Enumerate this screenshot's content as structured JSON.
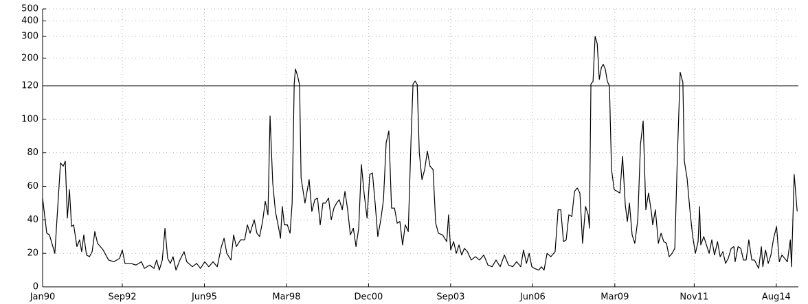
{
  "chart_data": {
    "type": "line",
    "x": [
      1990.0,
      1990.14,
      1990.23,
      1990.41,
      1990.6,
      1990.69,
      1990.76,
      1990.83,
      1990.9,
      1990.97,
      1991.04,
      1991.15,
      1991.24,
      1991.31,
      1991.38,
      1991.47,
      1991.57,
      1991.66,
      1991.75,
      1991.84,
      1992.03,
      1992.21,
      1992.39,
      1992.58,
      1992.67,
      1992.76,
      1992.95,
      1993.13,
      1993.31,
      1993.41,
      1993.59,
      1993.73,
      1993.82,
      1993.91,
      1994.01,
      1994.1,
      1994.19,
      1994.28,
      1994.37,
      1994.47,
      1994.6,
      1994.74,
      1994.83,
      1995.02,
      1995.16,
      1995.29,
      1995.43,
      1995.57,
      1995.71,
      1995.85,
      1995.99,
      1996.08,
      1996.17,
      1996.31,
      1996.4,
      1996.49,
      1996.63,
      1996.77,
      1996.86,
      1996.95,
      1997.09,
      1997.18,
      1997.27,
      1997.37,
      1997.46,
      1997.55,
      1997.62,
      1997.71,
      1997.8,
      1997.9,
      1997.97,
      1998.03,
      1998.1,
      1998.2,
      1998.29,
      1998.36,
      1998.43,
      1998.47,
      1998.54,
      1998.61,
      1998.66,
      1998.79,
      1998.93,
      1999.02,
      1999.12,
      1999.21,
      1999.3,
      1999.39,
      1999.48,
      1999.58,
      1999.67,
      1999.76,
      1999.85,
      1999.94,
      2000.04,
      2000.13,
      2000.22,
      2000.31,
      2000.41,
      2000.5,
      2000.59,
      2000.68,
      2000.77,
      2000.87,
      2000.96,
      2001.05,
      2001.14,
      2001.23,
      2001.33,
      2001.42,
      2001.51,
      2001.6,
      2001.69,
      2001.79,
      2001.88,
      2001.97,
      2002.06,
      2002.15,
      2002.25,
      2002.34,
      2002.41,
      2002.48,
      2002.55,
      2002.62,
      2002.71,
      2002.8,
      2002.89,
      2002.98,
      2003.08,
      2003.17,
      2003.26,
      2003.4,
      2003.54,
      2003.6,
      2003.67,
      2003.77,
      2003.86,
      2003.95,
      2004.04,
      2004.13,
      2004.23,
      2004.36,
      2004.5,
      2004.64,
      2004.78,
      2004.92,
      2005.06,
      2005.19,
      2005.33,
      2005.47,
      2005.61,
      2005.75,
      2005.88,
      2006.02,
      2006.11,
      2006.21,
      2006.3,
      2006.39,
      2006.48,
      2006.62,
      2006.71,
      2006.8,
      2006.9,
      2007.03,
      2007.17,
      2007.27,
      2007.36,
      2007.45,
      2007.54,
      2007.63,
      2007.73,
      2007.82,
      2007.91,
      2008.0,
      2008.09,
      2008.19,
      2008.28,
      2008.32,
      2008.37,
      2008.44,
      2008.51,
      2008.58,
      2008.65,
      2008.72,
      2008.78,
      2008.85,
      2008.92,
      2008.99,
      2009.06,
      2009.15,
      2009.25,
      2009.34,
      2009.43,
      2009.52,
      2009.59,
      2009.66,
      2009.75,
      2009.84,
      2009.94,
      2010.03,
      2010.12,
      2010.21,
      2010.3,
      2010.4,
      2010.44,
      2010.53,
      2010.63,
      2010.72,
      2010.81,
      2010.9,
      2010.99,
      2011.09,
      2011.18,
      2011.27,
      2011.36,
      2011.45,
      2011.5,
      2011.59,
      2011.69,
      2011.78,
      2011.87,
      2011.96,
      2012.01,
      2012.05,
      2012.15,
      2012.24,
      2012.33,
      2012.42,
      2012.51,
      2012.61,
      2012.7,
      2012.79,
      2012.88,
      2012.97,
      2013.07,
      2013.16,
      2013.2,
      2013.3,
      2013.39,
      2013.48,
      2013.57,
      2013.66,
      2013.76,
      2013.85,
      2013.99,
      2014.08,
      2014.13,
      2014.22,
      2014.31,
      2014.4,
      2014.49,
      2014.59,
      2014.68,
      2014.77,
      2014.86,
      2014.95,
      2015.05,
      2015.09,
      2015.18,
      2015.28
    ],
    "values": [
      53,
      32,
      31,
      20,
      74,
      72,
      75,
      41,
      58,
      36,
      37,
      24,
      28,
      21,
      31,
      19,
      18,
      21,
      33,
      26,
      22,
      16,
      15,
      17,
      22,
      14,
      14,
      13,
      15,
      11,
      13,
      11,
      16,
      10,
      16,
      35,
      17,
      14,
      18,
      10,
      16,
      21,
      15,
      12,
      14,
      11,
      15,
      12,
      15,
      12,
      24,
      29,
      20,
      16,
      31,
      24,
      28,
      28,
      37,
      32,
      40,
      32,
      30,
      39,
      51,
      43,
      102,
      62,
      45,
      36,
      29,
      48,
      37,
      37,
      32,
      50,
      125,
      164,
      145,
      122,
      65,
      50,
      64,
      45,
      52,
      53,
      37,
      50,
      50,
      53,
      40,
      47,
      50,
      52,
      46,
      57,
      46,
      31,
      35,
      24,
      35,
      73,
      56,
      41,
      67,
      68,
      50,
      30,
      40,
      52,
      86,
      93,
      47,
      47,
      38,
      39,
      25,
      37,
      33,
      86,
      124,
      131,
      123,
      80,
      64,
      70,
      81,
      72,
      70,
      38,
      32,
      31,
      27,
      43,
      22,
      27,
      20,
      25,
      19,
      23,
      21,
      16,
      18,
      16,
      19,
      13,
      12,
      16,
      12,
      19,
      13,
      12,
      15,
      12,
      22,
      14,
      20,
      12,
      11,
      10,
      12,
      10,
      20,
      18,
      21,
      46,
      46,
      27,
      28,
      43,
      42,
      57,
      59,
      56,
      26,
      48,
      43,
      35,
      124,
      130,
      300,
      263,
      135,
      168,
      179,
      164,
      130,
      120,
      70,
      58,
      57,
      56,
      78,
      49,
      39,
      50,
      31,
      26,
      40,
      85,
      99,
      46,
      56,
      44,
      37,
      46,
      26,
      32,
      27,
      26,
      18,
      20,
      23,
      80,
      154,
      128,
      75,
      65,
      45,
      30,
      20,
      27,
      48,
      25,
      30,
      25,
      20,
      28,
      19,
      27,
      18,
      21,
      14,
      17,
      23,
      24,
      15,
      24,
      23,
      16,
      16,
      28,
      16,
      16,
      11,
      24,
      12,
      22,
      14,
      19,
      29,
      36,
      15,
      19,
      17,
      15,
      28,
      12,
      67,
      45
    ],
    "color": "#000000",
    "xlim": [
      1990,
      2015.32
    ],
    "xticks": [
      {
        "value": 1990,
        "label": "Jan90"
      },
      {
        "value": 1992.67,
        "label": "Sep92"
      },
      {
        "value": 1995.42,
        "label": "Jun95"
      },
      {
        "value": 1998.17,
        "label": "Mar98"
      },
      {
        "value": 2000.92,
        "label": "Dec00"
      },
      {
        "value": 2003.67,
        "label": "Sep03"
      },
      {
        "value": 2006.42,
        "label": "Jun06"
      },
      {
        "value": 2009.17,
        "label": "Mar09"
      },
      {
        "value": 2011.83,
        "label": "Nov11"
      },
      {
        "value": 2014.58,
        "label": "Aug14"
      }
    ],
    "ylim": [
      0,
      500
    ],
    "yticks": [
      0,
      20,
      40,
      60,
      80,
      100,
      120,
      200,
      300,
      400,
      500
    ],
    "y_break": 120,
    "upper_scale": "log",
    "grid": true
  }
}
